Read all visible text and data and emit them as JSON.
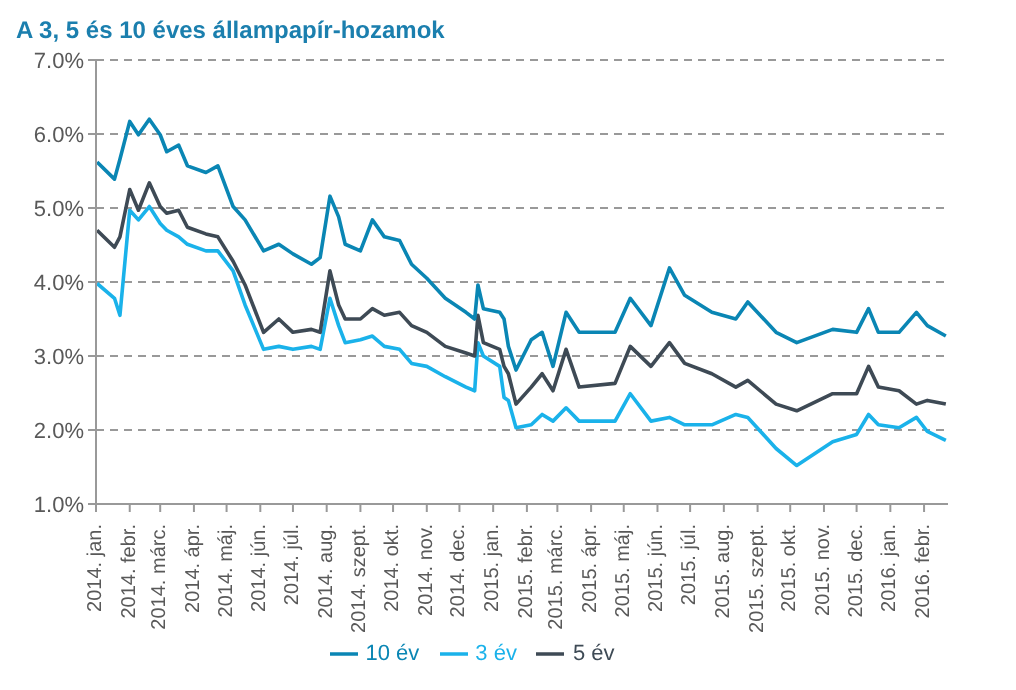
{
  "chart_data": {
    "type": "line",
    "title": "A 3, 5 és 10 éves állampapír-hozamok",
    "x": [
      "2014-01-02",
      "2014-01-18",
      "2014-01-23",
      "2014-02-01",
      "2014-02-09",
      "2014-02-19",
      "2014-03-01",
      "2014-03-07",
      "2014-03-18",
      "2014-03-26",
      "2014-04-12",
      "2014-04-23",
      "2014-05-07",
      "2014-05-18",
      "2014-06-04",
      "2014-06-18",
      "2014-07-01",
      "2014-07-18",
      "2014-07-26",
      "2014-08-04",
      "2014-08-12",
      "2014-08-18",
      "2014-09-01",
      "2014-09-12",
      "2014-09-23",
      "2014-10-07",
      "2014-10-18",
      "2014-11-01",
      "2014-11-18",
      "2014-12-07",
      "2014-12-15",
      "2014-12-18",
      "2014-12-23",
      "2015-01-07",
      "2015-01-11",
      "2015-01-15",
      "2015-01-22",
      "2015-02-05",
      "2015-02-15",
      "2015-02-25",
      "2015-03-09",
      "2015-03-21",
      "2015-04-23",
      "2015-05-07",
      "2015-05-26",
      "2015-06-12",
      "2015-06-26",
      "2015-07-21",
      "2015-08-12",
      "2015-08-23",
      "2015-09-18",
      "2015-10-07",
      "2015-11-09",
      "2015-12-01",
      "2015-12-12",
      "2015-12-21",
      "2016-01-09",
      "2016-01-25",
      "2016-02-04",
      "2016-02-21"
    ],
    "series": [
      {
        "name": "3 év",
        "color": "#1ab2ea",
        "values": [
          3.98,
          3.78,
          3.55,
          4.97,
          4.84,
          5.02,
          4.79,
          4.7,
          4.61,
          4.51,
          4.42,
          4.42,
          4.15,
          3.69,
          3.09,
          3.13,
          3.09,
          3.13,
          3.09,
          3.78,
          3.41,
          3.18,
          3.22,
          3.27,
          3.13,
          3.09,
          2.9,
          2.86,
          2.72,
          2.58,
          2.53,
          3.18,
          3.0,
          2.86,
          2.44,
          2.4,
          2.03,
          2.07,
          2.21,
          2.12,
          2.3,
          2.12,
          2.12,
          2.49,
          2.12,
          2.17,
          2.07,
          2.07,
          2.21,
          2.17,
          1.75,
          1.52,
          1.84,
          1.94,
          2.21,
          2.07,
          2.03,
          2.17,
          1.98,
          1.86
        ]
      },
      {
        "name": "5 év",
        "color": "#3e4a55",
        "values": [
          4.7,
          4.47,
          4.61,
          5.25,
          4.97,
          5.34,
          5.02,
          4.93,
          4.97,
          4.74,
          4.65,
          4.61,
          4.28,
          3.96,
          3.32,
          3.5,
          3.32,
          3.36,
          3.32,
          4.15,
          3.69,
          3.5,
          3.5,
          3.64,
          3.55,
          3.59,
          3.41,
          3.32,
          3.13,
          3.04,
          3.0,
          3.55,
          3.18,
          3.09,
          2.86,
          2.76,
          2.35,
          2.58,
          2.76,
          2.53,
          3.09,
          2.58,
          2.63,
          3.13,
          2.86,
          3.18,
          2.9,
          2.76,
          2.58,
          2.67,
          2.35,
          2.26,
          2.49,
          2.49,
          2.86,
          2.58,
          2.53,
          2.35,
          2.4,
          2.35
        ]
      },
      {
        "name": "10 év",
        "color": "#0a86b4",
        "values": [
          5.62,
          5.39,
          5.66,
          6.17,
          5.99,
          6.2,
          5.99,
          5.76,
          5.85,
          5.57,
          5.48,
          5.57,
          5.02,
          4.84,
          4.42,
          4.51,
          4.38,
          4.24,
          4.33,
          5.16,
          4.88,
          4.51,
          4.42,
          4.84,
          4.61,
          4.56,
          4.24,
          4.05,
          3.78,
          3.59,
          3.5,
          3.96,
          3.64,
          3.59,
          3.5,
          3.13,
          2.81,
          3.22,
          3.32,
          2.86,
          3.59,
          3.32,
          3.32,
          3.78,
          3.41,
          4.19,
          3.82,
          3.59,
          3.5,
          3.73,
          3.32,
          3.18,
          3.36,
          3.32,
          3.64,
          3.32,
          3.32,
          3.59,
          3.41,
          3.27
        ]
      }
    ],
    "xlim": [
      "2014-01-01",
      "2016-02-23"
    ],
    "xticks": [
      {
        "value": "2014-01-01",
        "label": "2014. jan."
      },
      {
        "value": "2014-02-01",
        "label": "2014. febr."
      },
      {
        "value": "2014-03-01",
        "label": "2014. márc."
      },
      {
        "value": "2014-04-01",
        "label": "2014. ápr."
      },
      {
        "value": "2014-05-01",
        "label": "2014. máj."
      },
      {
        "value": "2014-06-01",
        "label": "2014. jún."
      },
      {
        "value": "2014-07-01",
        "label": "2014. júl."
      },
      {
        "value": "2014-08-01",
        "label": "2014. aug."
      },
      {
        "value": "2014-09-01",
        "label": "2014. szept."
      },
      {
        "value": "2014-10-01",
        "label": "2014. okt."
      },
      {
        "value": "2014-11-01",
        "label": "2014. nov."
      },
      {
        "value": "2014-12-01",
        "label": "2014. dec."
      },
      {
        "value": "2015-01-01",
        "label": "2015. jan."
      },
      {
        "value": "2015-02-01",
        "label": "2015. febr."
      },
      {
        "value": "2015-03-01",
        "label": "2015. márc."
      },
      {
        "value": "2015-04-01",
        "label": "2015. ápr."
      },
      {
        "value": "2015-05-01",
        "label": "2015. máj."
      },
      {
        "value": "2015-06-01",
        "label": "2015. jún."
      },
      {
        "value": "2015-07-01",
        "label": "2015. júl."
      },
      {
        "value": "2015-08-01",
        "label": "2015. aug."
      },
      {
        "value": "2015-09-01",
        "label": "2015. szept."
      },
      {
        "value": "2015-10-01",
        "label": "2015. okt."
      },
      {
        "value": "2015-11-01",
        "label": "2015. nov."
      },
      {
        "value": "2015-12-01",
        "label": "2015. dec."
      },
      {
        "value": "2016-01-01",
        "label": "2016. jan."
      },
      {
        "value": "2016-02-01",
        "label": "2016. febr."
      }
    ],
    "ylim": [
      1,
      7
    ],
    "yticks": [
      {
        "value": 1,
        "label": "1.0%"
      },
      {
        "value": 2,
        "label": "2.0%"
      },
      {
        "value": 3,
        "label": "3.0%"
      },
      {
        "value": 4,
        "label": "4.0%"
      },
      {
        "value": 5,
        "label": "5.0%"
      },
      {
        "value": 6,
        "label": "6.0%"
      },
      {
        "value": 7,
        "label": "7.0%"
      }
    ],
    "grid": "y",
    "legend": "bottom",
    "marker": "none",
    "line_style": "solid"
  }
}
